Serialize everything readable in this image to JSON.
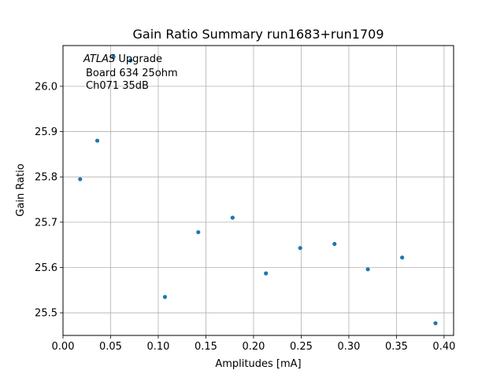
{
  "chart_data": {
    "type": "scatter",
    "title": "Gain Ratio Summary run1683+run1709",
    "xlabel": "Amplitudes [mA]",
    "ylabel": "Gain Ratio",
    "xlim": [
      0.0,
      0.41
    ],
    "ylim": [
      25.45,
      26.09
    ],
    "xticks": [
      "0.00",
      "0.05",
      "0.10",
      "0.15",
      "0.20",
      "0.25",
      "0.30",
      "0.35",
      "0.40"
    ],
    "yticks": [
      "25.5",
      "25.6",
      "25.7",
      "25.8",
      "25.9",
      "26.0"
    ],
    "grid": true,
    "marker_color": "#1f77b4",
    "annotation": {
      "italic": "ATLAS",
      "line1_rest": " Upgrade",
      "line2": "Board 634 25ohm",
      "line3": "Ch071 35dB"
    },
    "series": [
      {
        "x": [
          0.018,
          0.036,
          0.053,
          0.071,
          0.107,
          0.142,
          0.178,
          0.213,
          0.249,
          0.285,
          0.32,
          0.356,
          0.391
        ],
        "y": [
          25.795,
          25.88,
          26.065,
          26.057,
          25.535,
          25.678,
          25.71,
          25.587,
          25.643,
          25.652,
          25.596,
          25.622,
          25.477
        ]
      }
    ]
  }
}
